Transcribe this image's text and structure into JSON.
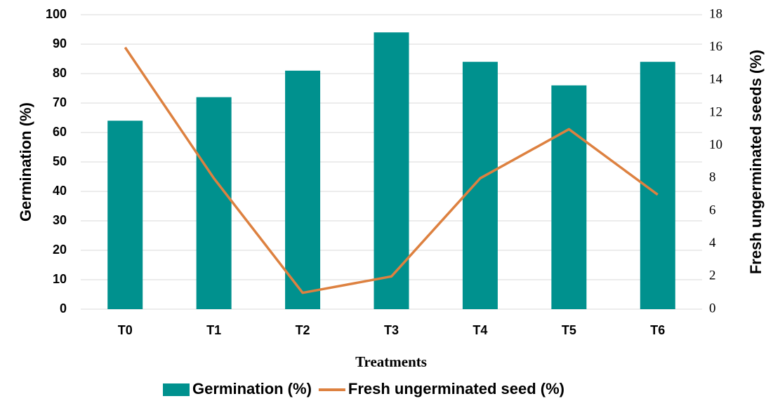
{
  "chart_data": {
    "type": "bar_line",
    "x_label": "Treatments",
    "y_label": "Germination (%)",
    "y2_label": "Fresh ungerminated seeds (%)",
    "categories": [
      "T0",
      "T1",
      "T2",
      "T3",
      "T4",
      "T5",
      "T6"
    ],
    "series": [
      {
        "name": "Germination (%)",
        "type": "bar",
        "color": "#00918e",
        "values": [
          64,
          72,
          81,
          94,
          84,
          76,
          84
        ]
      },
      {
        "name": "Fresh ungerminated seed (%)",
        "type": "line",
        "axis": "y2",
        "color": "#dd8140",
        "values": [
          16,
          8,
          1,
          2,
          8,
          11,
          7
        ]
      }
    ],
    "ylim": [
      0,
      100
    ],
    "yticks": [
      0,
      10,
      20,
      30,
      40,
      50,
      60,
      70,
      80,
      90,
      100
    ],
    "y2lim": [
      0,
      18
    ],
    "y2ticks": [
      0,
      2,
      4,
      6,
      8,
      10,
      12,
      14,
      16,
      18
    ],
    "grid": true,
    "legend": "bottom"
  }
}
